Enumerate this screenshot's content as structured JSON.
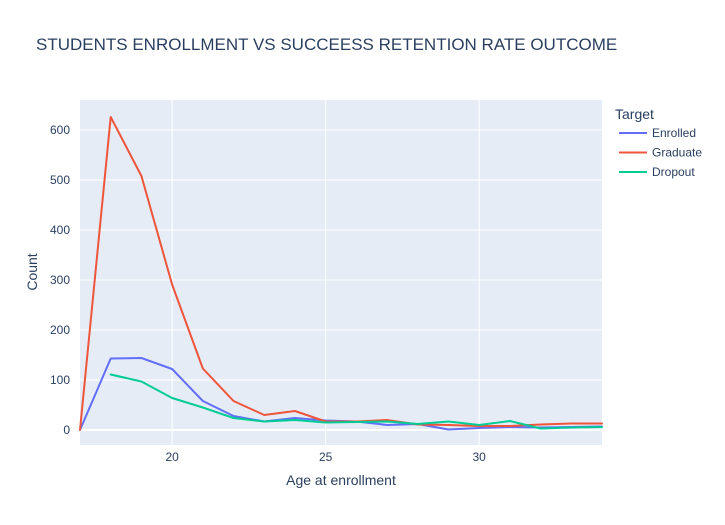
{
  "chart_data": {
    "type": "line",
    "title": "STUDENTS ENROLLMENT VS SUCCEESS RETENTION RATE OUTCOME",
    "xlabel": "Age at enrollment",
    "ylabel": "Count",
    "xlim": [
      17,
      34
    ],
    "ylim": [
      -30,
      660
    ],
    "x_ticks": [
      20,
      25,
      30
    ],
    "y_ticks": [
      0,
      100,
      200,
      300,
      400,
      500,
      600
    ],
    "grid": true,
    "legend": {
      "title": "Target",
      "position": "right"
    },
    "series": [
      {
        "name": "Enrolled",
        "color": "#636efa",
        "x": [
          17,
          18,
          19,
          20,
          21,
          22,
          23,
          24,
          25,
          26,
          27,
          28,
          29,
          30,
          31,
          32,
          33,
          34
        ],
        "y": [
          0,
          143,
          144,
          122,
          58,
          28,
          17,
          24,
          19,
          17,
          10,
          12,
          1,
          4,
          6,
          5,
          6,
          7
        ]
      },
      {
        "name": "Graduate",
        "color": "#ef553b",
        "x": [
          17,
          18,
          19,
          20,
          21,
          22,
          23,
          24,
          25,
          26,
          27,
          28,
          29,
          30,
          31,
          32,
          33,
          34
        ],
        "y": [
          0,
          626,
          508,
          291,
          123,
          58,
          30,
          38,
          17,
          17,
          20,
          11,
          10,
          8,
          8,
          11,
          13,
          13
        ]
      },
      {
        "name": "Dropout",
        "color": "#00cc96",
        "x": [
          18,
          19,
          20,
          21,
          22,
          23,
          24,
          25,
          26,
          27,
          28,
          29,
          30,
          31,
          32,
          33,
          34
        ],
        "y": [
          111,
          97,
          64,
          45,
          24,
          17,
          20,
          15,
          16,
          17,
          12,
          17,
          10,
          18,
          3,
          5,
          6
        ]
      }
    ]
  }
}
